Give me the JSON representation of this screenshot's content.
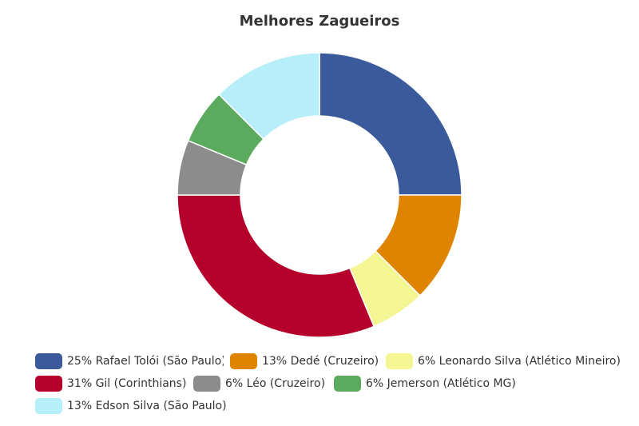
{
  "chart_data": {
    "type": "pie",
    "variant": "donut",
    "title": "Melhores Zagueiros",
    "legend_position": "bottom",
    "slices": [
      {
        "label": "25% Rafael Tolói (São Paulo)",
        "value": 25,
        "color": "#3a5a9b"
      },
      {
        "label": "13% Dedé (Cruzeiro)",
        "value": 12.5,
        "color": "#e08400"
      },
      {
        "label": "6% Leonardo Silva (Atlético Mineiro)",
        "value": 6.25,
        "color": "#f3f693"
      },
      {
        "label": "31% Gil (Corinthians)",
        "value": 31.25,
        "color": "#b4002a"
      },
      {
        "label": "6% Léo (Cruzeiro)",
        "value": 6.25,
        "color": "#8c8c8c"
      },
      {
        "label": "6% Jemerson (Atlético MG)",
        "value": 6.25,
        "color": "#5caa5e"
      },
      {
        "label": "13% Edson Silva (São Paulo)",
        "value": 12.5,
        "color": "#b6eefa"
      }
    ]
  }
}
